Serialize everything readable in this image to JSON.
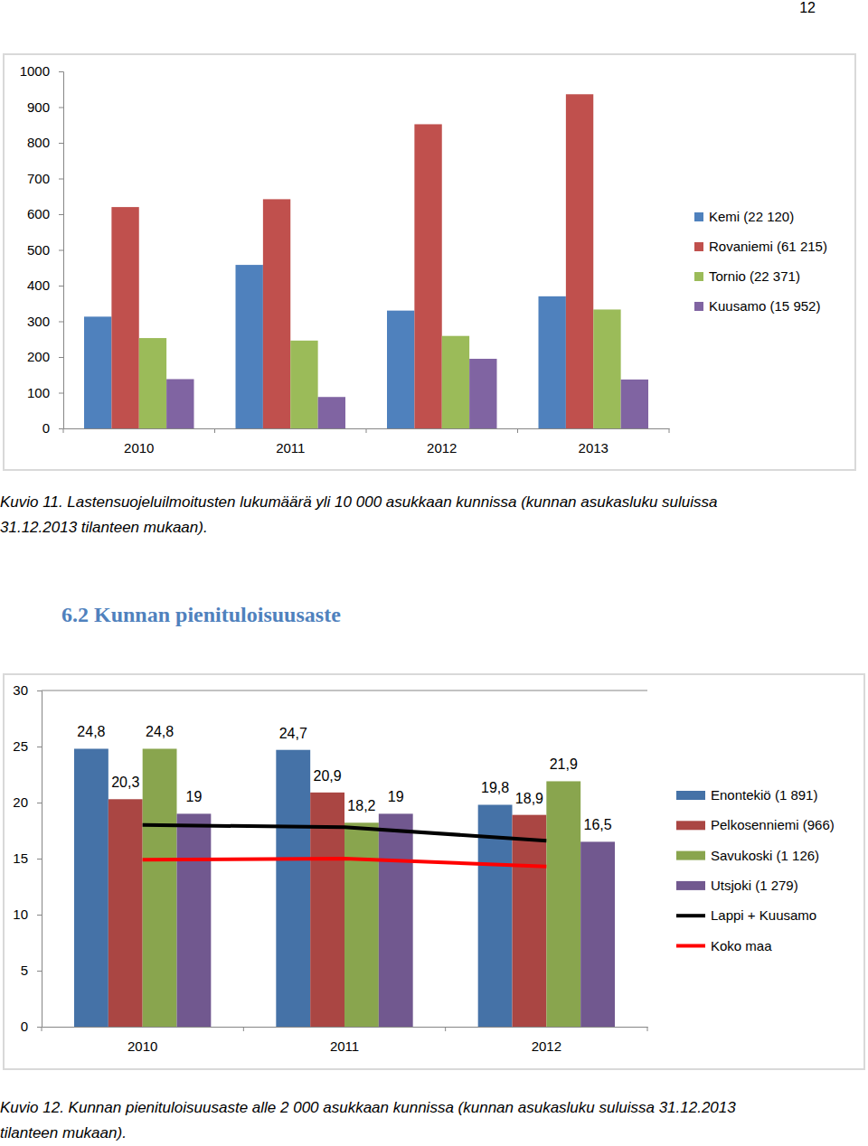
{
  "page": {
    "number": "12",
    "heading": "6.2 Kunnan pienituloisuusaste"
  },
  "chart_data": [
    {
      "type": "bar",
      "caption": [
        "Kuvio 11. Lastensuojeluilmoitusten lukumäärä yli 10 000 asukkaan kunnissa (kunnan asukasluku suluissa",
        "31.12.2013 tilanteen mukaan)."
      ],
      "categories": [
        "2010",
        "2011",
        "2012",
        "2013"
      ],
      "series": [
        {
          "name": "Kemi (22 120)",
          "color": "#4f81bd",
          "values": [
            313,
            458,
            330,
            370
          ]
        },
        {
          "name": "Rovaniemi (61 215)",
          "color": "#c0504d",
          "values": [
            620,
            642,
            852,
            936
          ]
        },
        {
          "name": "Tornio (22 371)",
          "color": "#9bbb59",
          "values": [
            253,
            246,
            259,
            333
          ]
        },
        {
          "name": "Kuusamo (15 952)",
          "color": "#8064a2",
          "values": [
            138,
            88,
            195,
            137
          ]
        }
      ],
      "ylim": [
        0,
        1000
      ],
      "yticks": [
        0,
        100,
        200,
        300,
        400,
        500,
        600,
        700,
        800,
        900,
        1000
      ],
      "grid": false,
      "legend": "right"
    },
    {
      "type": "bar",
      "caption": [
        "Kuvio 12. Kunnan pienituloisuusaste alle 2 000 asukkaan kunnissa (kunnan asukasluku suluissa 31.12.2013",
        "tilanteen mukaan)."
      ],
      "categories": [
        "2010",
        "2011",
        "2012"
      ],
      "series": [
        {
          "name": "Enontekiö (1 891)",
          "color": "#4572a7",
          "type": "bar",
          "data_labels": true,
          "values": [
            24.8,
            24.7,
            19.8
          ],
          "value_labels": [
            "24,8",
            "24,7",
            "19,8"
          ]
        },
        {
          "name": "Pelkosenniemi (966)",
          "color": "#aa4643",
          "type": "bar",
          "data_labels": true,
          "values": [
            20.3,
            20.9,
            18.9
          ],
          "value_labels": [
            "20,3",
            "20,9",
            "18,9"
          ]
        },
        {
          "name": "Savukoski (1 126)",
          "color": "#89a54e",
          "type": "bar",
          "data_labels": true,
          "values": [
            24.8,
            18.2,
            21.9
          ],
          "value_labels": [
            "24,8",
            "18,2",
            "21,9"
          ]
        },
        {
          "name": "Utsjoki (1 279)",
          "color": "#71588f",
          "type": "bar",
          "data_labels": true,
          "values": [
            19,
            19,
            16.5
          ],
          "value_labels": [
            "19",
            "19",
            "16,5"
          ]
        },
        {
          "name": "Lappi + Kuusamo",
          "color": "#000000",
          "type": "line",
          "data_labels": false,
          "values": [
            18.0,
            17.8,
            16.6
          ]
        },
        {
          "name": "Koko maa",
          "color": "#ff0000",
          "type": "line",
          "data_labels": false,
          "values": [
            14.9,
            15.0,
            14.3
          ]
        }
      ],
      "ylim": [
        0,
        30
      ],
      "yticks": [
        0,
        5,
        10,
        15,
        20,
        25,
        30
      ],
      "grid": false,
      "legend": "right"
    }
  ]
}
